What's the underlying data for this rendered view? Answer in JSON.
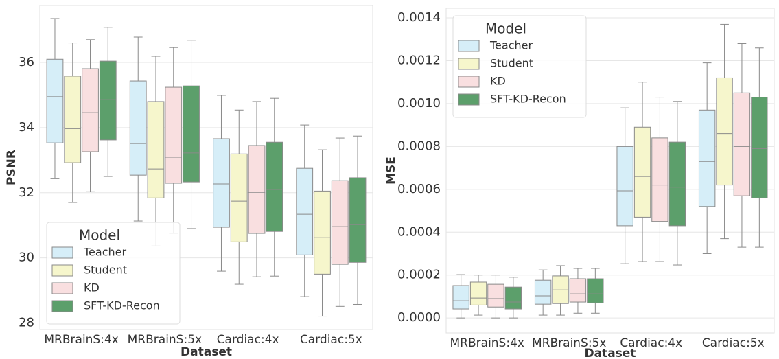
{
  "chart_data": [
    {
      "type": "box",
      "xlabel": "Dataset",
      "ylabel": "PSNR",
      "categories": [
        "MRBrainS:4x",
        "MRBrainS:5x",
        "Cardiac:4x",
        "Cardiac:5x"
      ],
      "ylim": [
        27.8,
        37.75
      ],
      "yticks": [
        28,
        30,
        32,
        34,
        36
      ],
      "grid": true,
      "legend_title": "Model",
      "legend": "lower left",
      "series": [
        {
          "name": "Teacher",
          "color": "#d6eef8",
          "values": [
            {
              "min": 32.43,
              "q1": 33.53,
              "median": 34.95,
              "q3": 36.1,
              "max": 37.35
            },
            {
              "min": 31.13,
              "q1": 32.54,
              "median": 33.51,
              "q3": 35.43,
              "max": 36.78
            },
            {
              "min": 29.59,
              "q1": 30.94,
              "median": 32.27,
              "q3": 33.66,
              "max": 34.99
            },
            {
              "min": 28.81,
              "q1": 30.09,
              "median": 31.34,
              "q3": 32.75,
              "max": 34.08
            }
          ]
        },
        {
          "name": "Student",
          "color": "#f6f6cc",
          "values": [
            {
              "min": 31.7,
              "q1": 32.92,
              "median": 33.97,
              "q3": 35.58,
              "max": 36.6
            },
            {
              "min": 30.37,
              "q1": 31.84,
              "median": 32.73,
              "q3": 34.8,
              "max": 36.19
            },
            {
              "min": 29.19,
              "q1": 30.49,
              "median": 31.74,
              "q3": 33.19,
              "max": 34.54
            },
            {
              "min": 28.21,
              "q1": 29.5,
              "median": 30.62,
              "q3": 32.05,
              "max": 33.32
            }
          ]
        },
        {
          "name": "KD",
          "color": "#f9dfe0",
          "values": [
            {
              "min": 32.03,
              "q1": 33.26,
              "median": 34.46,
              "q3": 35.81,
              "max": 36.7
            },
            {
              "min": 30.75,
              "q1": 32.29,
              "median": 33.09,
              "q3": 35.24,
              "max": 36.46
            },
            {
              "min": 29.42,
              "q1": 30.75,
              "median": 32.01,
              "q3": 33.45,
              "max": 34.8
            },
            {
              "min": 28.51,
              "q1": 29.8,
              "median": 30.96,
              "q3": 32.37,
              "max": 33.68
            }
          ]
        },
        {
          "name": "SFT-KD-Recon",
          "color": "#5c9f6b",
          "values": [
            {
              "min": 32.5,
              "q1": 33.62,
              "median": 34.86,
              "q3": 36.04,
              "max": 37.08
            },
            {
              "min": 30.9,
              "q1": 32.33,
              "median": 33.22,
              "q3": 35.28,
              "max": 36.68
            },
            {
              "min": 29.44,
              "q1": 30.81,
              "median": 32.1,
              "q3": 33.55,
              "max": 34.9
            },
            {
              "min": 28.57,
              "q1": 29.86,
              "median": 31.02,
              "q3": 32.46,
              "max": 33.74
            }
          ]
        }
      ]
    },
    {
      "type": "box",
      "xlabel": "Dataset",
      "ylabel": "MSE",
      "categories": [
        "MRBrainS:4x",
        "MRBrainS:5x",
        "Cardiac:4x",
        "Cardiac:5x"
      ],
      "ylim": [
        -7e-05,
        0.001445
      ],
      "yticks": [
        {
          "value": 0,
          "label": "0.0000"
        },
        0.0002,
        0.0004,
        0.0006,
        0.0008,
        {
          "value": 0.001,
          "label": "0.0010"
        },
        0.0012,
        0.0014
      ],
      "grid": true,
      "legend_title": "Model",
      "legend": "upper left",
      "series": [
        {
          "name": "Teacher",
          "color": "#d6eef8",
          "values": [
            {
              "min": 0,
              "q1": 4.2e-05,
              "median": 8e-05,
              "q3": 0.000151,
              "max": 0.000202
            },
            {
              "min": 1.3e-05,
              "q1": 6.4e-05,
              "median": 0.000103,
              "q3": 0.000176,
              "max": 0.000224
            },
            {
              "min": 0.000253,
              "q1": 0.00043,
              "median": 0.000593,
              "q3": 0.0008,
              "max": 0.00098
            },
            {
              "min": 0.0003,
              "q1": 0.00052,
              "median": 0.00073,
              "q3": 0.00097,
              "max": 0.00119
            }
          ]
        },
        {
          "name": "Student",
          "color": "#f6f6cc",
          "values": [
            {
              "min": 1.3e-05,
              "q1": 6e-05,
              "median": 9.3e-05,
              "q3": 0.000167,
              "max": 0.0002
            },
            {
              "min": 1.3e-05,
              "q1": 6.7e-05,
              "median": 0.000131,
              "q3": 0.000196,
              "max": 0.000244
            },
            {
              "min": 0.000263,
              "q1": 0.00047,
              "median": 0.00066,
              "q3": 0.00089,
              "max": 0.0011
            },
            {
              "min": 0.00037,
              "q1": 0.00062,
              "median": 0.00086,
              "q3": 0.00112,
              "max": 0.00137
            }
          ]
        },
        {
          "name": "KD",
          "color": "#f9dfe0",
          "values": [
            {
              "min": 0,
              "q1": 5.1e-05,
              "median": 9e-05,
              "q3": 0.000157,
              "max": 0.0002
            },
            {
              "min": 2.2e-05,
              "q1": 7.4e-05,
              "median": 0.000112,
              "q3": 0.000183,
              "max": 0.000231
            },
            {
              "min": 0.000263,
              "q1": 0.00045,
              "median": 0.00062,
              "q3": 0.00084,
              "max": 0.00103
            },
            {
              "min": 0.00033,
              "q1": 0.00057,
              "median": 0.0008,
              "q3": 0.00105,
              "max": 0.00128
            }
          ]
        },
        {
          "name": "SFT-KD-Recon",
          "color": "#5c9f6b",
          "values": [
            {
              "min": 0,
              "q1": 4.2e-05,
              "median": 7.4e-05,
              "q3": 0.000144,
              "max": 0.00019
            },
            {
              "min": 2.2e-05,
              "q1": 7e-05,
              "median": 0.000112,
              "q3": 0.000183,
              "max": 0.000231
            },
            {
              "min": 0.000247,
              "q1": 0.00043,
              "median": 0.00061,
              "q3": 0.00082,
              "max": 0.00101
            },
            {
              "min": 0.00033,
              "q1": 0.00056,
              "median": 0.00079,
              "q3": 0.00103,
              "max": 0.00126
            }
          ]
        }
      ]
    }
  ]
}
